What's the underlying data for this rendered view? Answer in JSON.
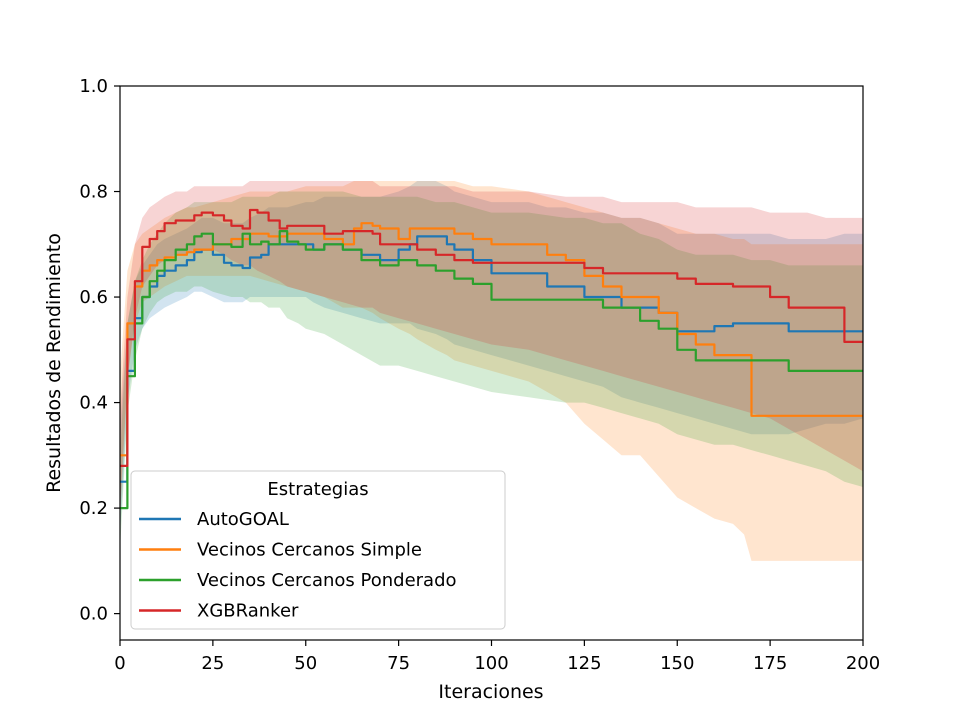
{
  "chart_data": {
    "type": "line",
    "title": "",
    "xlabel": "Iteraciones",
    "ylabel": "Resultados de Rendimiento",
    "xlim": [
      0,
      200
    ],
    "ylim": [
      -0.05,
      1.0
    ],
    "xticks": [
      "0",
      "25",
      "50",
      "75",
      "100",
      "125",
      "150",
      "175",
      "200"
    ],
    "yticks": [
      "0.0",
      "0.2",
      "0.4",
      "0.6",
      "0.8",
      "1.0"
    ],
    "grid": false,
    "legend": {
      "title": "Estrategias",
      "position": "bottom-left"
    },
    "band_note": "shaded band = spread around mean",
    "series": [
      {
        "name": "AutoGOAL",
        "color": "#1f77b4",
        "x": [
          0,
          2,
          4,
          6,
          8,
          10,
          12,
          15,
          18,
          20,
          22,
          25,
          28,
          30,
          33,
          35,
          38,
          40,
          45,
          50,
          52,
          55,
          60,
          65,
          70,
          75,
          78,
          80,
          85,
          88,
          90,
          95,
          100,
          110,
          115,
          120,
          125,
          130,
          135,
          140,
          145,
          150,
          155,
          160,
          165,
          170,
          175,
          180,
          185,
          190,
          195,
          200
        ],
        "y": [
          0.25,
          0.46,
          0.56,
          0.6,
          0.62,
          0.64,
          0.65,
          0.66,
          0.67,
          0.685,
          0.69,
          0.68,
          0.665,
          0.66,
          0.655,
          0.675,
          0.68,
          0.7,
          0.7,
          0.7,
          0.69,
          0.7,
          0.69,
          0.68,
          0.67,
          0.69,
          0.7,
          0.715,
          0.715,
          0.7,
          0.69,
          0.67,
          0.645,
          0.645,
          0.62,
          0.62,
          0.6,
          0.6,
          0.58,
          0.58,
          0.57,
          0.535,
          0.535,
          0.545,
          0.55,
          0.55,
          0.55,
          0.535,
          0.535,
          0.535,
          0.535,
          0.535
        ],
        "lower": [
          0.15,
          0.4,
          0.5,
          0.54,
          0.56,
          0.57,
          0.58,
          0.59,
          0.6,
          0.61,
          0.61,
          0.6,
          0.59,
          0.59,
          0.59,
          0.6,
          0.6,
          0.6,
          0.6,
          0.6,
          0.59,
          0.58,
          0.57,
          0.56,
          0.55,
          0.55,
          0.55,
          0.54,
          0.53,
          0.52,
          0.51,
          0.5,
          0.49,
          0.47,
          0.46,
          0.45,
          0.44,
          0.43,
          0.41,
          0.4,
          0.39,
          0.38,
          0.37,
          0.36,
          0.35,
          0.34,
          0.34,
          0.34,
          0.35,
          0.36,
          0.36,
          0.37
        ],
        "upper": [
          0.35,
          0.55,
          0.63,
          0.66,
          0.68,
          0.7,
          0.71,
          0.72,
          0.73,
          0.74,
          0.75,
          0.75,
          0.74,
          0.74,
          0.74,
          0.75,
          0.76,
          0.77,
          0.77,
          0.78,
          0.78,
          0.79,
          0.79,
          0.79,
          0.79,
          0.8,
          0.81,
          0.82,
          0.82,
          0.81,
          0.8,
          0.79,
          0.78,
          0.78,
          0.77,
          0.77,
          0.76,
          0.76,
          0.75,
          0.75,
          0.74,
          0.72,
          0.72,
          0.72,
          0.72,
          0.72,
          0.72,
          0.71,
          0.71,
          0.71,
          0.72,
          0.72
        ]
      },
      {
        "name": "Vecinos Cercanos Simple",
        "color": "#ff7f0e",
        "x": [
          0,
          2,
          4,
          6,
          8,
          10,
          12,
          15,
          18,
          20,
          25,
          30,
          35,
          40,
          45,
          50,
          55,
          60,
          63,
          65,
          68,
          70,
          75,
          78,
          80,
          85,
          88,
          90,
          95,
          100,
          110,
          115,
          120,
          125,
          130,
          135,
          140,
          145,
          150,
          155,
          160,
          165,
          168,
          170,
          175,
          180,
          185,
          190,
          195,
          200
        ],
        "y": [
          0.3,
          0.55,
          0.62,
          0.65,
          0.66,
          0.67,
          0.675,
          0.68,
          0.685,
          0.69,
          0.7,
          0.71,
          0.72,
          0.715,
          0.72,
          0.72,
          0.71,
          0.7,
          0.73,
          0.74,
          0.735,
          0.73,
          0.71,
          0.73,
          0.73,
          0.73,
          0.73,
          0.72,
          0.71,
          0.7,
          0.7,
          0.68,
          0.67,
          0.64,
          0.62,
          0.6,
          0.6,
          0.57,
          0.53,
          0.51,
          0.49,
          0.49,
          0.49,
          0.375,
          0.375,
          0.375,
          0.375,
          0.375,
          0.375,
          0.375
        ],
        "lower": [
          0.2,
          0.45,
          0.55,
          0.59,
          0.6,
          0.61,
          0.62,
          0.63,
          0.64,
          0.64,
          0.64,
          0.64,
          0.64,
          0.63,
          0.62,
          0.61,
          0.6,
          0.58,
          0.58,
          0.58,
          0.57,
          0.56,
          0.54,
          0.53,
          0.52,
          0.5,
          0.49,
          0.48,
          0.47,
          0.46,
          0.44,
          0.42,
          0.4,
          0.36,
          0.33,
          0.3,
          0.3,
          0.26,
          0.22,
          0.2,
          0.18,
          0.17,
          0.15,
          0.1,
          0.1,
          0.1,
          0.1,
          0.1,
          0.1,
          0.1
        ],
        "upper": [
          0.45,
          0.65,
          0.7,
          0.72,
          0.73,
          0.74,
          0.75,
          0.76,
          0.77,
          0.77,
          0.78,
          0.79,
          0.8,
          0.8,
          0.8,
          0.81,
          0.81,
          0.81,
          0.82,
          0.82,
          0.82,
          0.82,
          0.82,
          0.82,
          0.82,
          0.82,
          0.82,
          0.82,
          0.81,
          0.81,
          0.8,
          0.79,
          0.78,
          0.77,
          0.76,
          0.75,
          0.75,
          0.74,
          0.73,
          0.72,
          0.72,
          0.71,
          0.71,
          0.7,
          0.7,
          0.7,
          0.7,
          0.7,
          0.7,
          0.7
        ]
      },
      {
        "name": "Vecinos Cercanos Ponderado",
        "color": "#2ca02c",
        "x": [
          0,
          2,
          4,
          6,
          8,
          10,
          12,
          15,
          18,
          20,
          22,
          25,
          30,
          33,
          35,
          38,
          40,
          43,
          45,
          48,
          50,
          55,
          60,
          65,
          70,
          75,
          80,
          85,
          90,
          95,
          100,
          110,
          120,
          125,
          130,
          135,
          140,
          145,
          150,
          155,
          160,
          165,
          170,
          175,
          180,
          185,
          190,
          195,
          200
        ],
        "y": [
          0.2,
          0.45,
          0.55,
          0.6,
          0.63,
          0.65,
          0.67,
          0.69,
          0.7,
          0.715,
          0.72,
          0.7,
          0.695,
          0.72,
          0.7,
          0.705,
          0.7,
          0.725,
          0.705,
          0.7,
          0.69,
          0.7,
          0.69,
          0.67,
          0.66,
          0.67,
          0.66,
          0.65,
          0.635,
          0.625,
          0.595,
          0.595,
          0.595,
          0.595,
          0.58,
          0.58,
          0.555,
          0.54,
          0.5,
          0.48,
          0.48,
          0.48,
          0.48,
          0.48,
          0.46,
          0.46,
          0.46,
          0.46,
          0.46
        ],
        "lower": [
          0.12,
          0.38,
          0.48,
          0.54,
          0.57,
          0.59,
          0.6,
          0.61,
          0.61,
          0.62,
          0.62,
          0.61,
          0.6,
          0.6,
          0.59,
          0.59,
          0.58,
          0.58,
          0.56,
          0.55,
          0.54,
          0.53,
          0.51,
          0.49,
          0.47,
          0.47,
          0.46,
          0.45,
          0.44,
          0.43,
          0.42,
          0.41,
          0.4,
          0.4,
          0.39,
          0.38,
          0.37,
          0.36,
          0.34,
          0.33,
          0.32,
          0.32,
          0.31,
          0.3,
          0.29,
          0.28,
          0.27,
          0.25,
          0.24
        ],
        "upper": [
          0.3,
          0.55,
          0.63,
          0.67,
          0.7,
          0.72,
          0.74,
          0.76,
          0.77,
          0.78,
          0.78,
          0.78,
          0.78,
          0.79,
          0.79,
          0.79,
          0.79,
          0.8,
          0.8,
          0.8,
          0.8,
          0.8,
          0.8,
          0.79,
          0.79,
          0.79,
          0.79,
          0.78,
          0.78,
          0.77,
          0.76,
          0.76,
          0.75,
          0.75,
          0.74,
          0.74,
          0.72,
          0.71,
          0.69,
          0.68,
          0.68,
          0.68,
          0.67,
          0.67,
          0.66,
          0.66,
          0.66,
          0.66,
          0.66
        ]
      },
      {
        "name": "XGBRanker",
        "color": "#d62728",
        "x": [
          0,
          2,
          4,
          6,
          8,
          10,
          12,
          15,
          18,
          20,
          22,
          25,
          28,
          30,
          33,
          35,
          37,
          40,
          43,
          45,
          50,
          55,
          60,
          65,
          68,
          70,
          75,
          80,
          85,
          90,
          95,
          100,
          110,
          120,
          125,
          130,
          135,
          140,
          145,
          150,
          155,
          160,
          165,
          170,
          175,
          180,
          185,
          190,
          195,
          200
        ],
        "y": [
          0.28,
          0.52,
          0.63,
          0.695,
          0.71,
          0.725,
          0.74,
          0.745,
          0.745,
          0.755,
          0.76,
          0.755,
          0.745,
          0.735,
          0.73,
          0.765,
          0.76,
          0.745,
          0.73,
          0.735,
          0.735,
          0.72,
          0.725,
          0.725,
          0.72,
          0.7,
          0.7,
          0.69,
          0.68,
          0.67,
          0.665,
          0.665,
          0.665,
          0.665,
          0.655,
          0.645,
          0.645,
          0.645,
          0.645,
          0.635,
          0.625,
          0.625,
          0.62,
          0.62,
          0.6,
          0.58,
          0.58,
          0.58,
          0.515,
          0.515
        ],
        "lower": [
          0.18,
          0.44,
          0.56,
          0.62,
          0.64,
          0.66,
          0.67,
          0.68,
          0.68,
          0.69,
          0.69,
          0.69,
          0.68,
          0.67,
          0.66,
          0.66,
          0.65,
          0.64,
          0.63,
          0.62,
          0.61,
          0.6,
          0.59,
          0.58,
          0.58,
          0.57,
          0.56,
          0.55,
          0.54,
          0.53,
          0.52,
          0.51,
          0.5,
          0.48,
          0.47,
          0.46,
          0.45,
          0.44,
          0.43,
          0.42,
          0.41,
          0.4,
          0.39,
          0.38,
          0.37,
          0.35,
          0.33,
          0.31,
          0.29,
          0.27
        ],
        "upper": [
          0.38,
          0.6,
          0.7,
          0.75,
          0.77,
          0.78,
          0.79,
          0.8,
          0.8,
          0.81,
          0.81,
          0.81,
          0.81,
          0.81,
          0.81,
          0.82,
          0.82,
          0.82,
          0.82,
          0.82,
          0.82,
          0.82,
          0.82,
          0.82,
          0.82,
          0.81,
          0.81,
          0.81,
          0.81,
          0.81,
          0.8,
          0.8,
          0.8,
          0.79,
          0.79,
          0.79,
          0.78,
          0.78,
          0.78,
          0.78,
          0.77,
          0.77,
          0.77,
          0.77,
          0.76,
          0.76,
          0.76,
          0.75,
          0.75,
          0.75
        ]
      }
    ]
  }
}
